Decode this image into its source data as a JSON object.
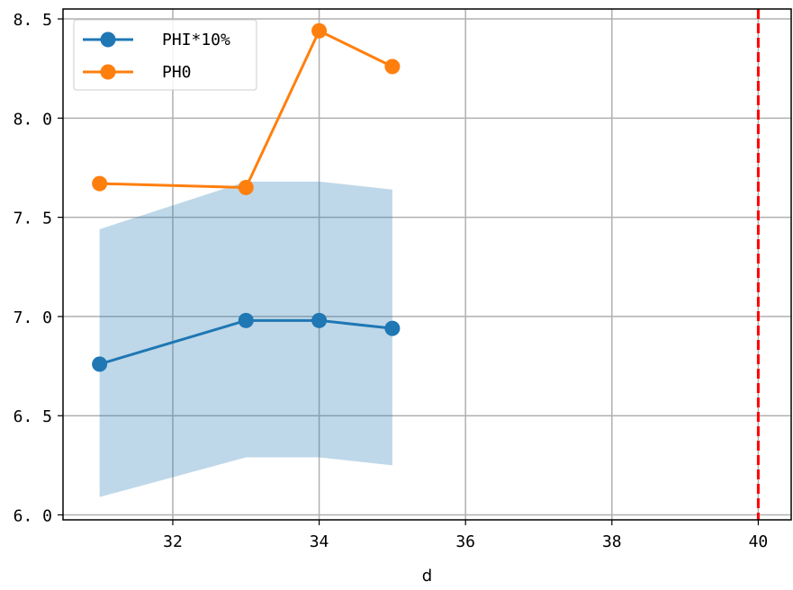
{
  "chart_data": {
    "type": "line",
    "xlabel": "d",
    "ylabel": "",
    "xlim": [
      30.5,
      40.45
    ],
    "ylim": [
      5.975,
      8.55
    ],
    "x_ticks": [
      32,
      34,
      36,
      38,
      40
    ],
    "x_tick_labels": [
      "32",
      "34",
      "36",
      "38",
      "40"
    ],
    "y_ticks": [
      6.0,
      6.5,
      7.0,
      7.5,
      8.0,
      8.5
    ],
    "y_tick_labels": [
      "6. 0",
      "6. 5",
      "7. 0",
      "7. 5",
      "8. 0",
      "8. 5"
    ],
    "grid": true,
    "legend_position": "upper-left",
    "series": [
      {
        "name": "PHI*10%",
        "color": "#1f77b4",
        "x": [
          31,
          33,
          34,
          35
        ],
        "y": [
          6.76,
          6.98,
          6.98,
          6.94
        ],
        "marker": "circle"
      },
      {
        "name": "PH0",
        "color": "#ff7f0e",
        "x": [
          31,
          33,
          34,
          35
        ],
        "y": [
          7.67,
          7.65,
          8.44,
          8.26
        ],
        "marker": "circle"
      }
    ],
    "band": {
      "color": "#1f77b4",
      "opacity": 0.29,
      "x": [
        31,
        33,
        34,
        35
      ],
      "lower": [
        6.09,
        6.29,
        6.29,
        6.25
      ],
      "upper": [
        7.44,
        7.68,
        7.68,
        7.64
      ]
    },
    "vline": {
      "x": 40,
      "color": "#ff0000",
      "style": "dashed"
    }
  }
}
